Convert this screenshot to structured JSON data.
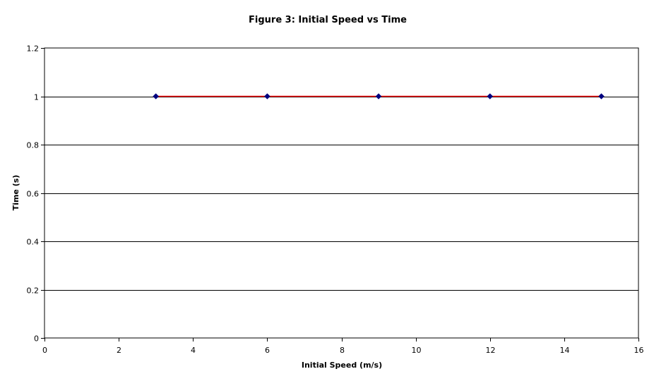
{
  "chart_data": {
    "type": "line",
    "title": "Figure 3: Initial Speed vs Time",
    "xlabel": "Initial Speed (m/s)",
    "ylabel": "Time (s)",
    "xlim": [
      0,
      16
    ],
    "ylim": [
      0,
      1.2
    ],
    "x_ticks": [
      0,
      2,
      4,
      6,
      8,
      10,
      12,
      14,
      16
    ],
    "y_ticks": [
      0,
      0.2,
      0.4,
      0.6,
      0.8,
      1,
      1.2
    ],
    "x_tick_labels": [
      "0",
      "2",
      "4",
      "6",
      "8",
      "10",
      "12",
      "14",
      "16"
    ],
    "y_tick_labels": [
      "0",
      "0.2",
      "0.4",
      "0.6",
      "0.8",
      "1",
      "1.2"
    ],
    "grid": "horizontal",
    "legend": "none",
    "series": [
      {
        "x": [
          3,
          6,
          9,
          12,
          15
        ],
        "y": [
          1,
          1,
          1,
          1,
          1
        ],
        "line_color": "#ff0000",
        "marker": "diamond",
        "marker_color": "#000080"
      }
    ]
  }
}
